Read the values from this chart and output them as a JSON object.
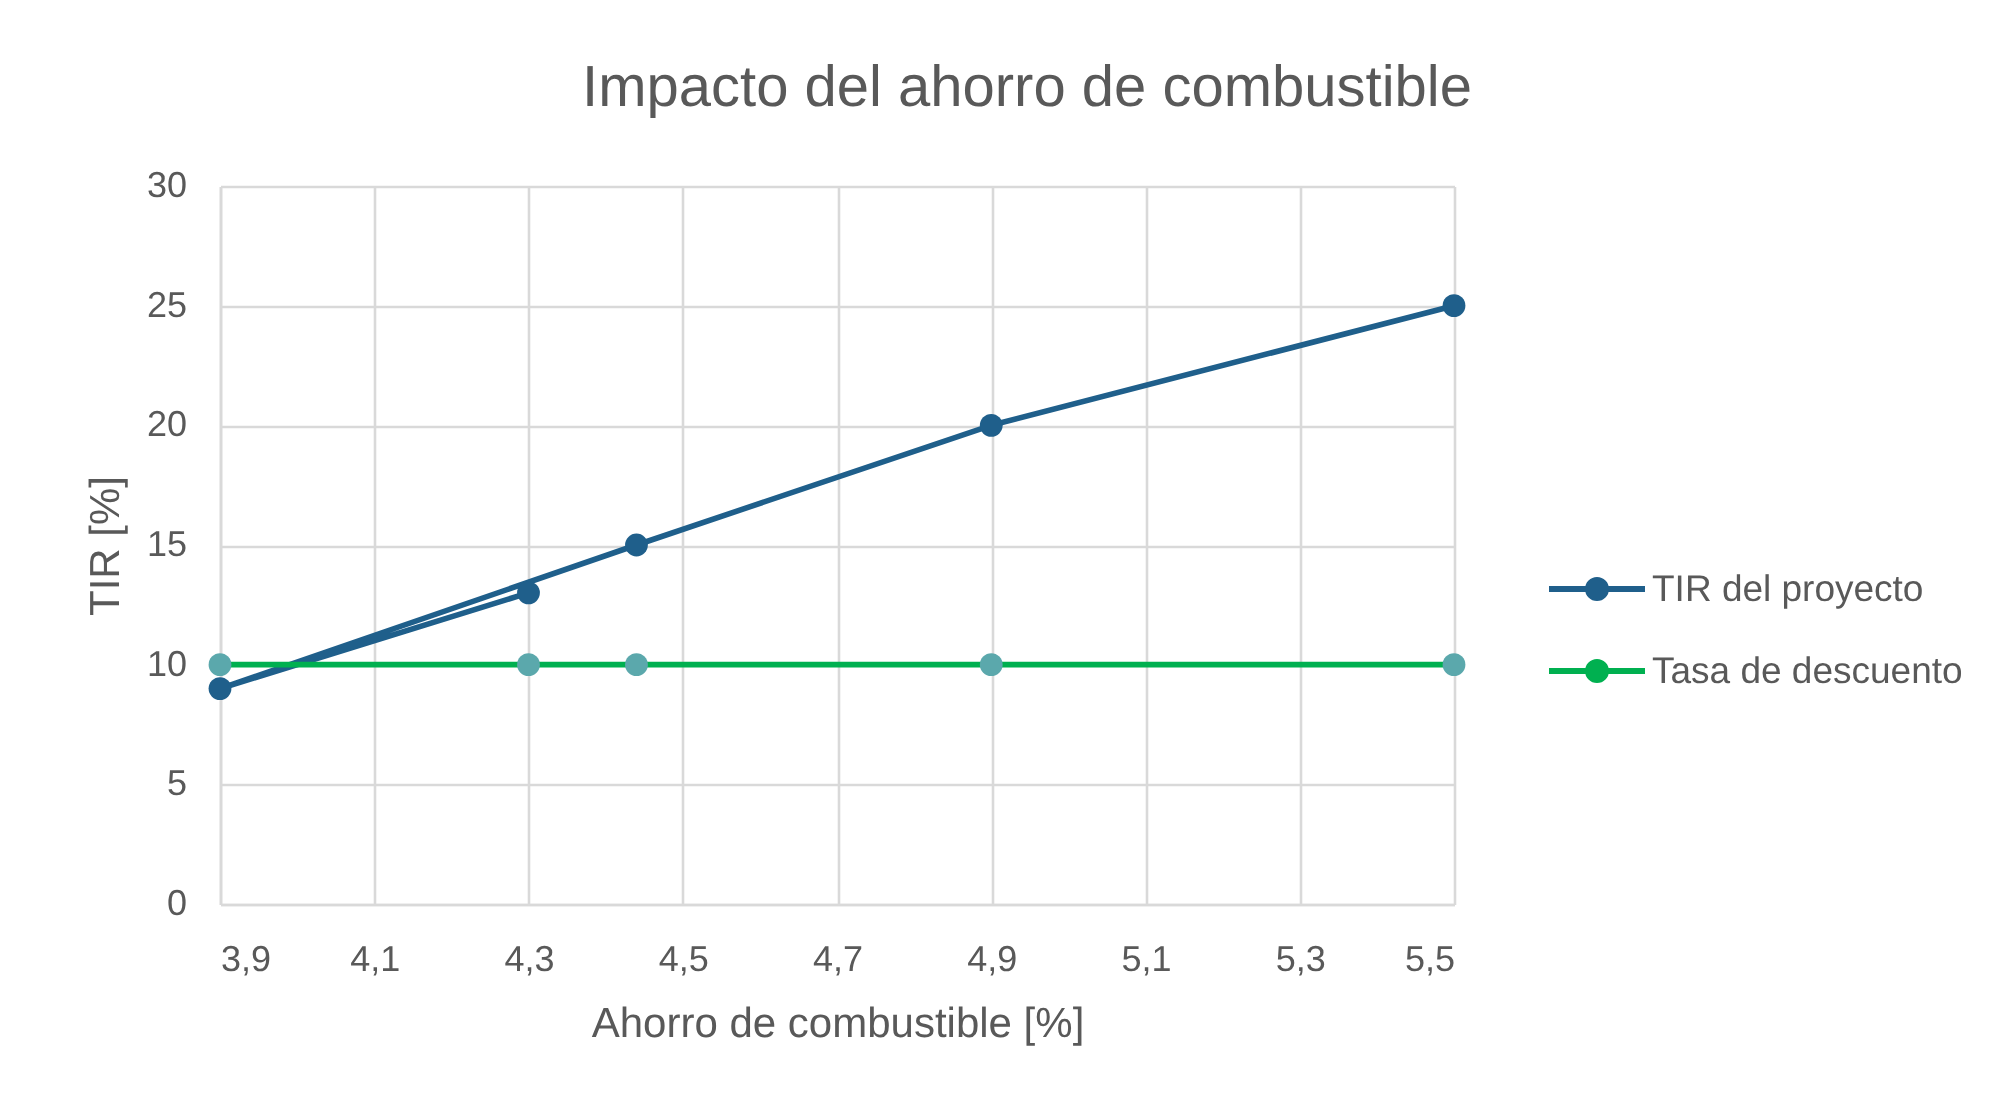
{
  "chart_data": {
    "type": "line",
    "title": "Impacto del ahorro de combustible",
    "xlabel": "Ahorro de combustible [%]",
    "ylabel": "TIR [%]",
    "series": [
      {
        "name": "TIR del proyecto",
        "color": "#1f5f8b",
        "x": [
          4.3,
          3.9,
          4.44,
          4.9,
          5.5
        ],
        "values": [
          13,
          9,
          15,
          20,
          25
        ]
      },
      {
        "name": "Tasa de descuento",
        "color": "#00b050",
        "colors": [
          "#5ba8ac",
          "#5ba8ac",
          "#5ba8ac",
          "#5ba8ac",
          "#5ba8ac"
        ],
        "x": [
          3.9,
          4.3,
          4.44,
          4.9,
          5.5
        ],
        "values": [
          10,
          10,
          10,
          10,
          10
        ]
      }
    ],
    "xlim": [
      3.9,
      5.5
    ],
    "xticks": [
      {
        "value": 3.9,
        "label": "3,9"
      },
      {
        "value": 4.1,
        "label": "4,1"
      },
      {
        "value": 4.3,
        "label": "4,3"
      },
      {
        "value": 4.5,
        "label": "4,5"
      },
      {
        "value": 4.7,
        "label": "4,7"
      },
      {
        "value": 4.9,
        "label": "4,9"
      },
      {
        "value": 5.1,
        "label": "5,1"
      },
      {
        "value": 5.3,
        "label": "5,3"
      },
      {
        "value": 5.5,
        "label": "5,5"
      }
    ],
    "ylim": [
      0,
      30
    ],
    "yticks": [
      0,
      5,
      10,
      15,
      20,
      25,
      30
    ],
    "grid": true,
    "legend": "right",
    "marker": "circle",
    "line_style": "solid"
  }
}
